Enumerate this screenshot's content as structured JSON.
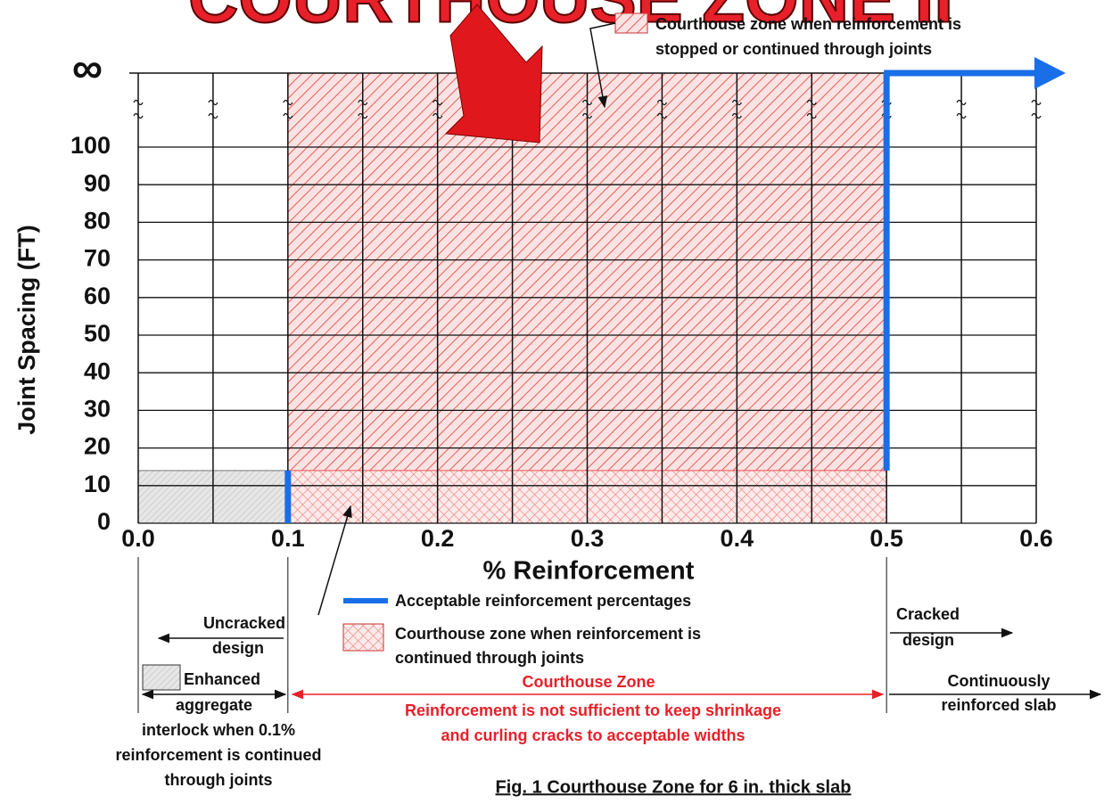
{
  "chart_data": {
    "type": "zone",
    "banner": "COURTHOUSE ZONE II",
    "title": "Fig. 1 Courthouse Zone for 6 in. thick slab",
    "x_label": "% Reinforcement",
    "y_label": "Joint Spacing (FT)",
    "xlim": [
      0,
      0.6
    ],
    "xticks": [
      {
        "value": 0,
        "label": "0.0"
      },
      0.1,
      0.2,
      0.3,
      0.4,
      0.5,
      0.6
    ],
    "x_minor_ticks": [
      0.05,
      0.15,
      0.25,
      0.35,
      0.45,
      0.55
    ],
    "ylim": [
      0,
      100
    ],
    "yticks": [
      0,
      10,
      20,
      30,
      40,
      50,
      60,
      70,
      80,
      90,
      100
    ],
    "infinity_label": "∞",
    "regions": [
      {
        "x": [
          0.1,
          0.5
        ],
        "y": [
          14
        ],
        "fill": "hatch"
      },
      {
        "x": [
          0.1,
          0.5
        ],
        "y": [
          0,
          14
        ],
        "fill": "crosshatch"
      },
      {
        "x": [
          0,
          0.1
        ],
        "y": [
          0,
          14
        ],
        "fill": "gray"
      }
    ],
    "acceptable_lines": [
      {
        "x": 0.1,
        "y": [
          0,
          14
        ]
      },
      {
        "x": 0.5,
        "y": [
          14
        ]
      }
    ],
    "acceptable_color": "#1a6ee8",
    "legend": {
      "hatch": [
        "Courthouse zone when reinforcement is",
        "stopped or continued through joints"
      ],
      "acceptable": "Acceptable reinforcement percentages",
      "crosshatch": [
        "Courthouse zone when reinforcement is",
        "continued through joints"
      ]
    },
    "annotations": {
      "uncracked": [
        "Uncracked",
        "design"
      ],
      "cracked": [
        "Cracked",
        "design"
      ],
      "enhanced": [
        "Enhanced",
        "aggregate",
        "interlock when 0.1%",
        "reinforcement is continued",
        "through joints"
      ],
      "courthouse_zone": "Courthouse Zone",
      "insufficient": [
        "Reinforcement is not sufficient to keep shrinkage",
        "and curling cracks to acceptable widths"
      ],
      "continuous": [
        "Continuously",
        "reinforced slab"
      ]
    }
  }
}
